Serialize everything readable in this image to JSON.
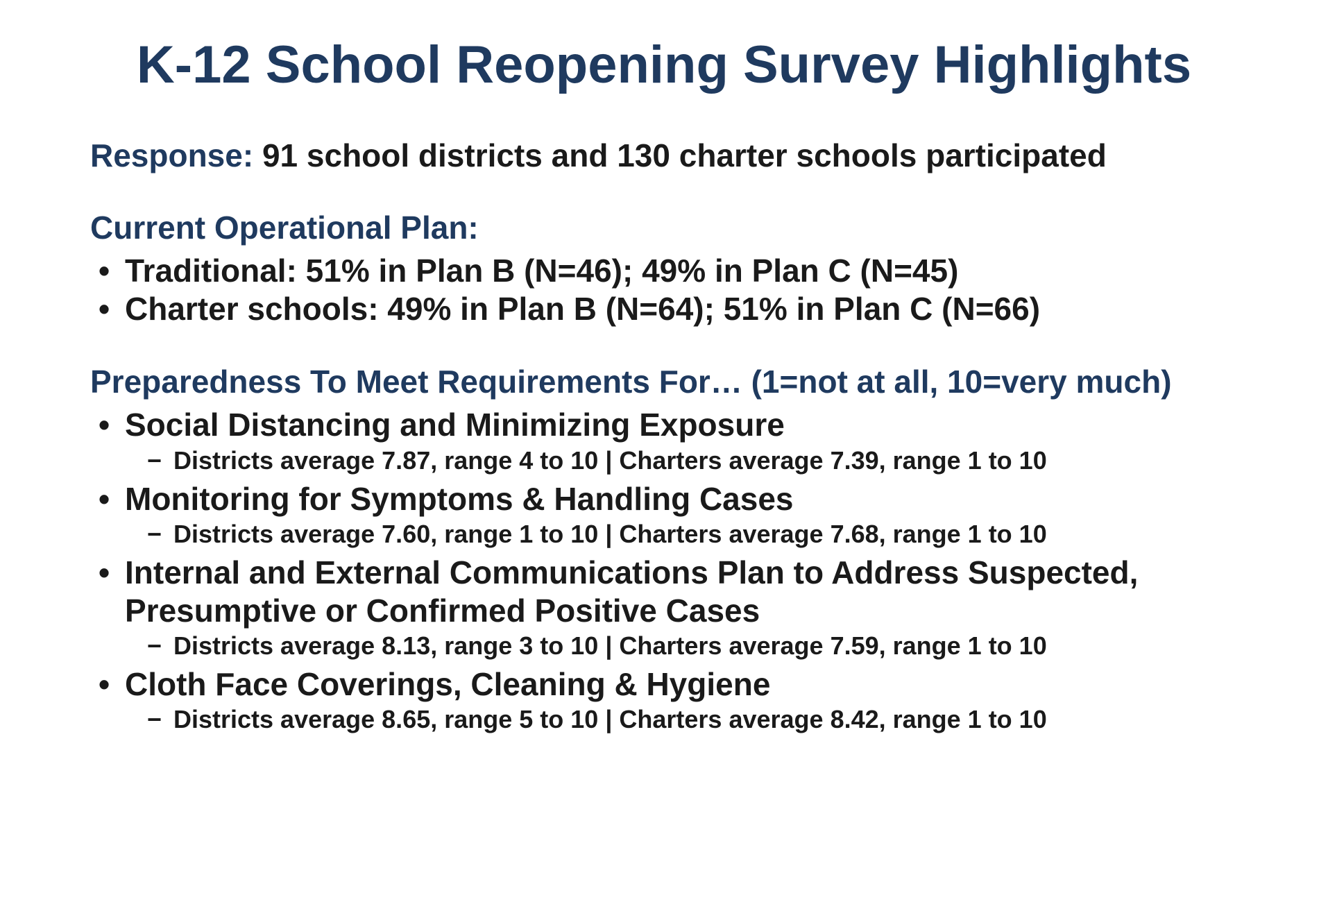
{
  "title": "K-12 School Reopening Survey Highlights",
  "response": {
    "label": "Response: ",
    "text": "91 school districts and 130 charter schools participated"
  },
  "operationalPlan": {
    "header": "Current Operational Plan:",
    "items": [
      "Traditional: 51% in Plan B (N=46); 49% in Plan C (N=45)",
      "Charter schools: 49% in Plan B (N=64); 51% in Plan C (N=66)"
    ]
  },
  "preparedness": {
    "header": "Preparedness To Meet Requirements For… (1=not at all, 10=very much)",
    "items": [
      {
        "title": "Social Distancing and Minimizing Exposure",
        "detail": "Districts average 7.87, range 4 to 10 | Charters average 7.39, range 1 to 10"
      },
      {
        "title": "Monitoring for Symptoms & Handling Cases",
        "detail": "Districts average 7.60, range 1 to 10 | Charters average 7.68, range 1 to 10"
      },
      {
        "title": "Internal and External Communications Plan to Address Suspected, Presumptive or Confirmed Positive Cases",
        "detail": "Districts average 8.13, range 3 to 10 | Charters average 7.59, range 1 to 10"
      },
      {
        "title": "Cloth Face Coverings, Cleaning & Hygiene",
        "detail": "Districts average 8.65, range 5 to 10 | Charters average 8.42, range 1 to 10"
      }
    ]
  },
  "colors": {
    "heading": "#1f3a5f",
    "body": "#1a1a1a",
    "background": "#ffffff"
  },
  "typography": {
    "title_fontsize": 76,
    "section_header_fontsize": 46,
    "bullet_fontsize": 46,
    "sub_bullet_fontsize": 36,
    "font_family": "Arial Narrow",
    "font_weight": "bold"
  }
}
